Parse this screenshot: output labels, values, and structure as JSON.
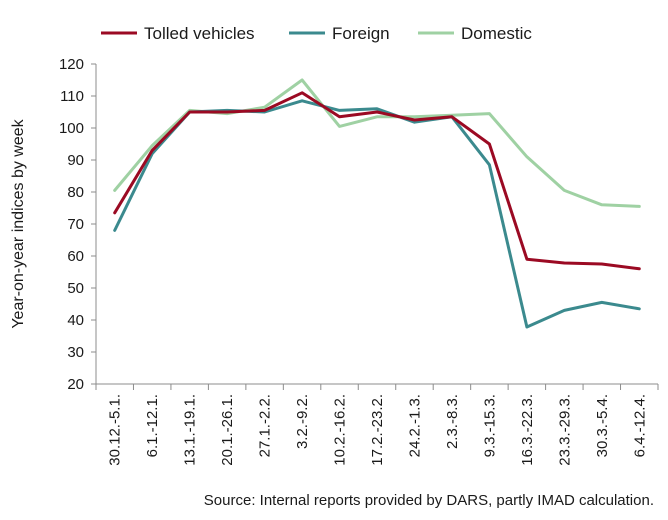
{
  "chart_data": {
    "type": "line",
    "ylabel": "Year-on-year indices by week",
    "ylim": [
      20,
      120
    ],
    "yticks": [
      "20",
      "30",
      "40",
      "50",
      "60",
      "70",
      "80",
      "90",
      "100",
      "110",
      "120"
    ],
    "categories": [
      "30.12.-5.1.",
      "6.1.-12.1.",
      "13.1.-19.1.",
      "20.1.-26.1.",
      "27.1.-2.2.",
      "3.2.-9.2.",
      "10.2.-16.2.",
      "17.2.-23.2.",
      "24.2.-1.3.",
      "2.3.-8.3.",
      "9.3.-15.3.",
      "16.3.-22.3.",
      "23.3.-29.3.",
      "30.3.-5.4.",
      "6.4.-12.4."
    ],
    "legend_position": "top",
    "grid": false,
    "series": [
      {
        "name": "Tolled vehicles",
        "color": "#9b0a23",
        "values": [
          73.5,
          93,
          105,
          105,
          105.5,
          111,
          103.5,
          105,
          102.5,
          103.5,
          95,
          59,
          57.8,
          57.5,
          56
        ]
      },
      {
        "name": "Foreign",
        "color": "#3b8a8e",
        "values": [
          68,
          92,
          105,
          105.5,
          105,
          108.5,
          105.5,
          106,
          101.8,
          103.5,
          88.5,
          37.8,
          43,
          45.5,
          43.5
        ]
      },
      {
        "name": "Domestic",
        "color": "#9fd1a3",
        "values": [
          80.5,
          94.5,
          105.5,
          104.5,
          106.5,
          115,
          100.5,
          103.5,
          103.5,
          104,
          104.5,
          91,
          80.5,
          76,
          75.5
        ]
      }
    ],
    "source": "Source: Internal reports provided by DARS, partly IMAD calculation."
  }
}
